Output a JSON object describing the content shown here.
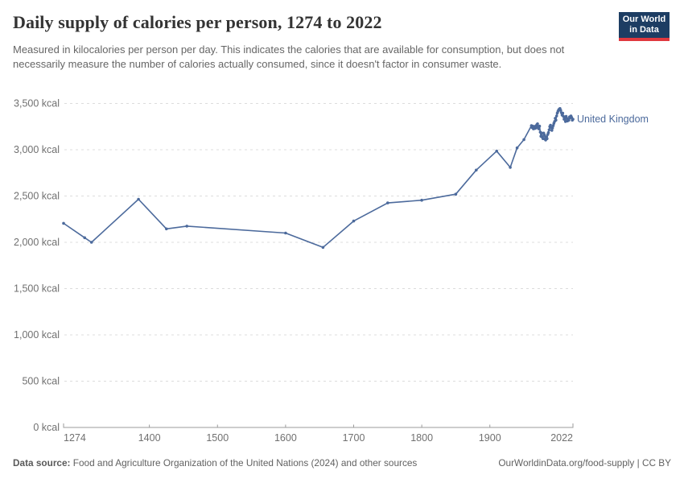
{
  "logo": {
    "line1": "Our World",
    "line2": "in Data",
    "bg_color": "#1d3d63",
    "accent_color": "#e0383e"
  },
  "entity": {
    "label": "United Kingdom",
    "color": "#4c6a9c"
  },
  "footer": {
    "source_label": "Data source:",
    "source_text": " Food and Agriculture Organization of the United Nations (2024) and other sources",
    "link": "OurWorldinData.org/food-supply",
    "separator": " | ",
    "license": "CC BY"
  },
  "chart_data": {
    "type": "line",
    "title": "Daily supply of calories per person, 1274 to 2022",
    "subtitle": "Measured in kilocalories per person per day. This indicates the calories that are available for consumption, but does not necessarily measure the number of calories actually consumed, since it doesn't factor in consumer waste.",
    "xlabel": "",
    "ylabel": "kcal",
    "xlim": [
      1274,
      2022
    ],
    "ylim": [
      0,
      3500
    ],
    "grid": "dashed-horizontal",
    "legend": "inline-end-label",
    "line_color": "#4c6a9c",
    "yticks": [
      {
        "value": 0,
        "label": "0 kcal"
      },
      {
        "value": 500,
        "label": "500 kcal"
      },
      {
        "value": 1000,
        "label": "1,000 kcal"
      },
      {
        "value": 1500,
        "label": "1,500 kcal"
      },
      {
        "value": 2000,
        "label": "2,000 kcal"
      },
      {
        "value": 2500,
        "label": "2,500 kcal"
      },
      {
        "value": 3000,
        "label": "3,000 kcal"
      },
      {
        "value": 3500,
        "label": "3,500 kcal"
      }
    ],
    "xticks": [
      {
        "value": 1274,
        "label": "1274",
        "anchor": "start",
        "tick": false
      },
      {
        "value": 1400,
        "label": "1400",
        "anchor": "middle",
        "tick": true
      },
      {
        "value": 1500,
        "label": "1500",
        "anchor": "middle",
        "tick": true
      },
      {
        "value": 1600,
        "label": "1600",
        "anchor": "middle",
        "tick": true
      },
      {
        "value": 1700,
        "label": "1700",
        "anchor": "middle",
        "tick": true
      },
      {
        "value": 1800,
        "label": "1800",
        "anchor": "middle",
        "tick": true
      },
      {
        "value": 1900,
        "label": "1900",
        "anchor": "middle",
        "tick": true
      },
      {
        "value": 2022,
        "label": "2022",
        "anchor": "end",
        "tick": false
      }
    ],
    "series": [
      {
        "name": "United Kingdom",
        "points": [
          [
            1274,
            2205
          ],
          [
            1305,
            2050
          ],
          [
            1315,
            2000
          ],
          [
            1384,
            2465
          ],
          [
            1425,
            2145
          ],
          [
            1455,
            2175
          ],
          [
            1600,
            2100
          ],
          [
            1655,
            1945
          ],
          [
            1700,
            2230
          ],
          [
            1750,
            2425
          ],
          [
            1800,
            2455
          ],
          [
            1850,
            2520
          ],
          [
            1880,
            2780
          ],
          [
            1910,
            2985
          ],
          [
            1930,
            2810
          ],
          [
            1940,
            3020
          ],
          [
            1950,
            3110
          ],
          [
            1961,
            3260
          ],
          [
            1962,
            3240
          ],
          [
            1963,
            3255
          ],
          [
            1964,
            3225
          ],
          [
            1965,
            3250
          ],
          [
            1966,
            3230
          ],
          [
            1967,
            3255
          ],
          [
            1968,
            3235
          ],
          [
            1969,
            3270
          ],
          [
            1970,
            3280
          ],
          [
            1971,
            3250
          ],
          [
            1972,
            3225
          ],
          [
            1973,
            3255
          ],
          [
            1974,
            3190
          ],
          [
            1975,
            3145
          ],
          [
            1976,
            3180
          ],
          [
            1977,
            3135
          ],
          [
            1978,
            3120
          ],
          [
            1979,
            3180
          ],
          [
            1980,
            3160
          ],
          [
            1981,
            3115
          ],
          [
            1982,
            3105
          ],
          [
            1983,
            3140
          ],
          [
            1984,
            3120
          ],
          [
            1985,
            3165
          ],
          [
            1986,
            3185
          ],
          [
            1987,
            3215
          ],
          [
            1988,
            3250
          ],
          [
            1989,
            3265
          ],
          [
            1990,
            3240
          ],
          [
            1991,
            3210
          ],
          [
            1992,
            3235
          ],
          [
            1993,
            3260
          ],
          [
            1994,
            3285
          ],
          [
            1995,
            3305
          ],
          [
            1996,
            3340
          ],
          [
            1997,
            3320
          ],
          [
            1998,
            3365
          ],
          [
            1999,
            3395
          ],
          [
            2000,
            3415
          ],
          [
            2001,
            3430
          ],
          [
            2002,
            3440
          ],
          [
            2003,
            3445
          ],
          [
            2004,
            3425
          ],
          [
            2005,
            3400
          ],
          [
            2006,
            3375
          ],
          [
            2007,
            3395
          ],
          [
            2008,
            3360
          ],
          [
            2009,
            3330
          ],
          [
            2010,
            3345
          ],
          [
            2011,
            3305
          ],
          [
            2012,
            3360
          ],
          [
            2013,
            3340
          ],
          [
            2014,
            3310
          ],
          [
            2015,
            3330
          ],
          [
            2016,
            3320
          ],
          [
            2017,
            3355
          ],
          [
            2018,
            3345
          ],
          [
            2019,
            3365
          ],
          [
            2020,
            3350
          ],
          [
            2021,
            3320
          ],
          [
            2022,
            3330
          ]
        ]
      }
    ]
  }
}
